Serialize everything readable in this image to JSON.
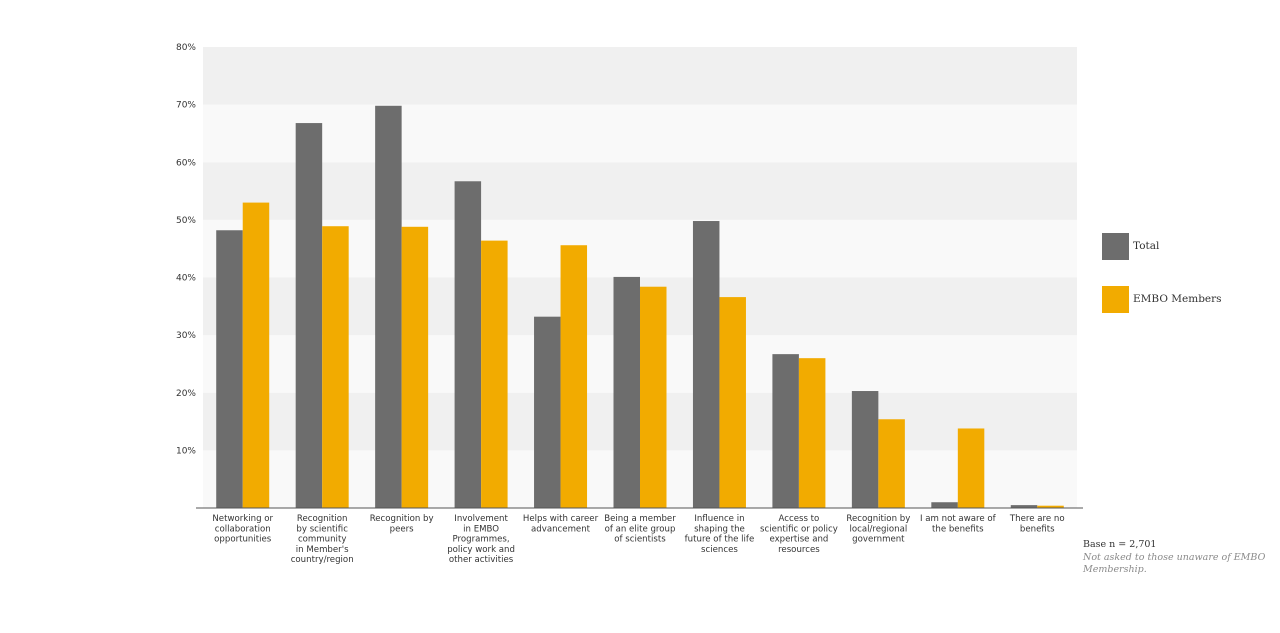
{
  "chart_data": {
    "type": "bar",
    "title": "",
    "xlabel": "",
    "ylabel": "",
    "ylim": [
      0,
      80
    ],
    "yticks": [
      "10%",
      "20%",
      "30%",
      "40%",
      "50%",
      "60%",
      "70%",
      "80%"
    ],
    "categories": [
      "Networking or collaboration opportunities",
      "Recognition by scientific community in Member's country/region",
      "Recognition by peers",
      "Involvement in EMBO Programmes, policy work and other activities",
      "Helps with career advancement",
      "Being a member of an elite group of scientists",
      "Influence in shaping the future of the life sciences",
      "Access to scientific or policy expertise and resources",
      "Recognition by local/regional government",
      "I am not aware of the benefits",
      "There are no benefits"
    ],
    "category_lines": [
      [
        "Networking or",
        "collaboration",
        "opportunities"
      ],
      [
        "Recognition",
        "by scientific",
        "community",
        "in Member's",
        "country/region"
      ],
      [
        "Recognition by",
        "peers"
      ],
      [
        "Involvement",
        "in EMBO",
        "Programmes,",
        "policy work and",
        "other activities"
      ],
      [
        "Helps with career",
        "advancement"
      ],
      [
        "Being a member",
        "of an elite group",
        "of scientists"
      ],
      [
        "Influence in",
        "shaping the",
        "future of the life",
        "sciences"
      ],
      [
        "Access to",
        "scientific or policy",
        "expertise and",
        "resources"
      ],
      [
        "Recognition by",
        "local/regional",
        "government"
      ],
      [
        "I am not aware of",
        "the benefits"
      ],
      [
        "There are no",
        "benefits"
      ]
    ],
    "series": [
      {
        "name": "Total",
        "color": "#6d6d6d",
        "values": [
          48.2,
          66.8,
          69.8,
          56.7,
          33.2,
          40.1,
          49.8,
          26.7,
          20.3,
          1.0,
          0.5
        ]
      },
      {
        "name": "EMBO Members",
        "color": "#f2ab00",
        "values": [
          53.0,
          48.9,
          48.8,
          46.4,
          45.6,
          38.4,
          36.6,
          26.0,
          15.4,
          13.8,
          0.4
        ]
      }
    ],
    "grid": true,
    "legend_position": "right",
    "notes": {
      "base": "Base n = 2,701",
      "note": "Not asked to those unaware of EMBO Membership."
    }
  }
}
